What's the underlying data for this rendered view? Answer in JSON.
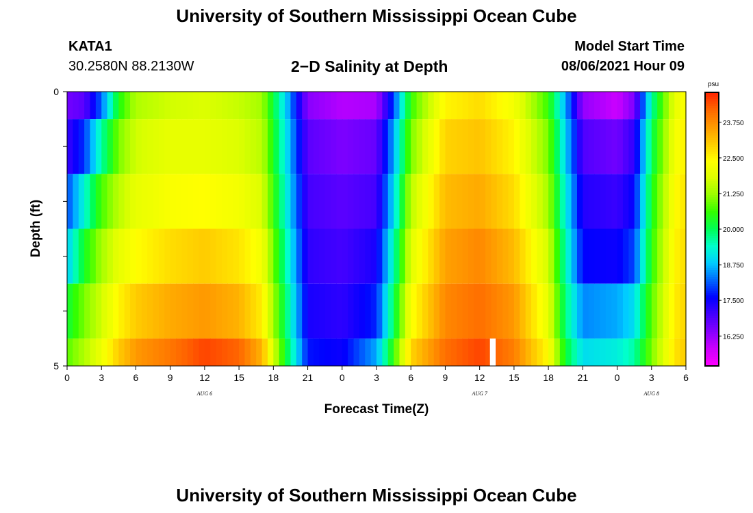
{
  "header": {
    "title_top": "University of Southern Mississippi Ocean Cube",
    "station_id": "KATA1",
    "coords": "30.2580N  88.2130W",
    "plot_title": "2−D Salinity at Depth",
    "model_start_label": "Model Start Time",
    "model_start_value": "08/06/2021 Hour 09",
    "title_bottom": "University of Southern Mississippi Ocean Cube"
  },
  "chart_data": {
    "type": "heatmap",
    "title": "2−D Salinity at Depth",
    "xlabel": "Forecast Time(Z)",
    "ylabel": "Depth (ft)",
    "units": "psu",
    "x_tick_labels": [
      "0",
      "3",
      "6",
      "9",
      "12",
      "15",
      "18",
      "21",
      "0",
      "3",
      "6",
      "9",
      "12",
      "15",
      "18",
      "21",
      "0",
      "3",
      "6"
    ],
    "x_range_hours": [
      0,
      54
    ],
    "date_labels": [
      {
        "text": "AUG 6",
        "hour": 12
      },
      {
        "text": "AUG 7",
        "hour": 36
      },
      {
        "text": "AUG 8",
        "hour": 51
      }
    ],
    "y_tick_labels": [
      "0",
      "5"
    ],
    "y_range_ft": [
      0,
      5
    ],
    "colorbar": {
      "label": "psu",
      "ticks": [
        "23.750",
        "22.500",
        "21.250",
        "20.000",
        "18.750",
        "17.500",
        "16.250"
      ],
      "range": [
        15.2,
        24.8
      ],
      "colors": [
        "#ff00ff",
        "#cc00ff",
        "#8800ff",
        "#4400ff",
        "#0000ff",
        "#0066ff",
        "#00ccff",
        "#00ffcc",
        "#00ff55",
        "#33ff00",
        "#99ff00",
        "#ddff00",
        "#ffff00",
        "#ffcc00",
        "#ff9900",
        "#ff6600",
        "#ff2200"
      ]
    },
    "depth_layers_ft": [
      [
        0,
        0.5
      ],
      [
        0.5,
        1.5
      ],
      [
        1.5,
        2.5
      ],
      [
        2.5,
        3.5
      ],
      [
        3.5,
        4.5
      ],
      [
        4.5,
        5
      ]
    ],
    "series": [
      {
        "name": "layer-0.0-0.5ft",
        "hours": [
          0,
          1.5,
          3,
          4.5,
          6,
          9,
          12,
          15,
          17,
          19,
          21,
          24,
          27,
          28.5,
          30,
          33,
          36,
          39,
          42,
          43.5,
          45,
          48,
          49.5,
          51,
          53,
          54
        ],
        "values": [
          16.6,
          16.8,
          18.2,
          20.4,
          21.4,
          21.7,
          21.8,
          21.6,
          21.3,
          19.0,
          16.4,
          16.0,
          16.1,
          18.0,
          20.6,
          22.5,
          22.8,
          22.2,
          20.6,
          18.6,
          16.3,
          15.8,
          16.5,
          19.6,
          22.0,
          22.4
        ]
      },
      {
        "name": "layer-0.5-1.5ft",
        "hours": [
          0,
          1.5,
          3,
          4.5,
          6,
          9,
          12,
          15,
          17,
          19,
          21,
          24,
          27,
          28.5,
          30,
          33,
          36,
          39,
          42,
          43.5,
          45,
          48,
          49.5,
          51,
          53,
          54
        ],
        "values": [
          17.1,
          17.9,
          19.6,
          21.0,
          21.7,
          22.0,
          22.0,
          21.8,
          21.5,
          19.2,
          16.8,
          16.5,
          16.7,
          18.6,
          21.0,
          22.9,
          23.1,
          22.5,
          21.0,
          18.9,
          16.9,
          16.6,
          17.2,
          20.0,
          22.2,
          22.6
        ]
      },
      {
        "name": "layer-1.5-2.5ft",
        "hours": [
          0,
          1.5,
          3,
          4.5,
          6,
          9,
          12,
          15,
          17,
          19,
          21,
          24,
          27,
          28.5,
          30,
          33,
          36,
          39,
          42,
          43.5,
          45,
          48,
          49.5,
          51,
          53,
          54
        ],
        "values": [
          18.0,
          19.3,
          20.7,
          21.5,
          22.0,
          22.3,
          22.4,
          22.2,
          21.8,
          19.4,
          17.0,
          16.8,
          17.0,
          19.0,
          21.5,
          23.2,
          23.4,
          22.8,
          21.3,
          19.2,
          17.3,
          17.1,
          17.6,
          20.3,
          22.4,
          22.7
        ]
      },
      {
        "name": "layer-2.5-3.5ft",
        "hours": [
          0,
          1.5,
          3,
          4.5,
          6,
          9,
          12,
          15,
          17,
          19,
          21,
          24,
          27,
          28.5,
          30,
          33,
          36,
          39,
          42,
          43.5,
          45,
          48,
          49.5,
          51,
          53,
          54
        ],
        "values": [
          18.8,
          20.3,
          21.3,
          22.0,
          22.4,
          22.8,
          23.0,
          22.7,
          22.2,
          19.7,
          17.2,
          17.0,
          17.4,
          19.5,
          21.9,
          23.5,
          23.8,
          23.2,
          21.7,
          19.5,
          17.6,
          17.5,
          18.0,
          20.5,
          22.5,
          22.8
        ]
      },
      {
        "name": "layer-3.5-4.5ft",
        "hours": [
          0,
          1.5,
          3,
          4.5,
          6,
          9,
          12,
          15,
          17,
          19,
          21,
          24,
          27,
          28.5,
          30,
          33,
          36,
          39,
          42,
          43.5,
          45,
          48,
          49.5,
          51,
          53,
          54
        ],
        "values": [
          20.2,
          21.0,
          21.7,
          22.5,
          23.0,
          23.4,
          23.6,
          23.3,
          22.6,
          20.0,
          17.4,
          17.2,
          17.8,
          20.0,
          22.3,
          23.8,
          24.1,
          23.6,
          22.0,
          19.8,
          18.4,
          18.6,
          19.0,
          20.8,
          22.6,
          22.9
        ]
      },
      {
        "name": "layer-4.5-5.0ft",
        "hours": [
          0,
          1.5,
          3,
          4.5,
          6,
          9,
          12,
          15,
          17,
          19,
          21,
          24,
          27,
          28.5,
          30,
          33,
          36,
          39,
          42,
          43.5,
          45,
          48,
          49.5,
          51,
          53,
          54
        ],
        "values": [
          20.8,
          21.4,
          22.1,
          23.0,
          23.6,
          24.0,
          24.5,
          24.2,
          23.3,
          20.3,
          17.7,
          17.5,
          18.6,
          20.6,
          22.9,
          24.1,
          24.5,
          23.9,
          22.4,
          20.2,
          19.0,
          19.2,
          19.6,
          21.0,
          22.7,
          23.0
        ]
      }
    ],
    "gaps": [
      {
        "hour_start": 36.9,
        "hour_end": 37.4,
        "depth_start": 4.5,
        "depth_end": 5.0
      }
    ]
  }
}
